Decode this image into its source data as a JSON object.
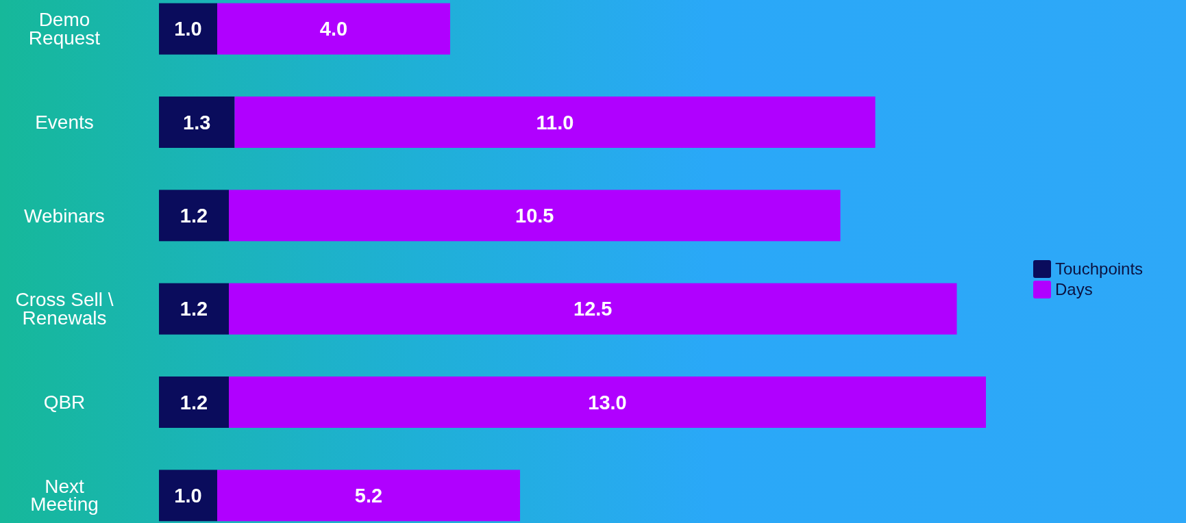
{
  "chart_data": {
    "type": "bar",
    "orientation": "horizontal",
    "stacked": true,
    "categories": [
      "Demo Request",
      "Events",
      "Webinars",
      "Cross Sell \\ Renewals",
      "QBR",
      "Next Meeting"
    ],
    "series": [
      {
        "name": "Touchpoints",
        "color": "#0a0c5c",
        "values": [
          1.0,
          1.3,
          1.2,
          1.2,
          1.2,
          1.0
        ],
        "value_labels": [
          "1.0",
          "1.3",
          "1.2",
          "1.2",
          "1.2",
          "1.0"
        ]
      },
      {
        "name": "Days",
        "color": "#b000ff",
        "values": [
          4.0,
          11.0,
          10.5,
          12.5,
          13.0,
          5.2
        ],
        "value_labels": [
          "4.0",
          "11.0",
          "10.5",
          "12.5",
          "13.0",
          "5.2"
        ]
      }
    ],
    "legend": "right"
  }
}
